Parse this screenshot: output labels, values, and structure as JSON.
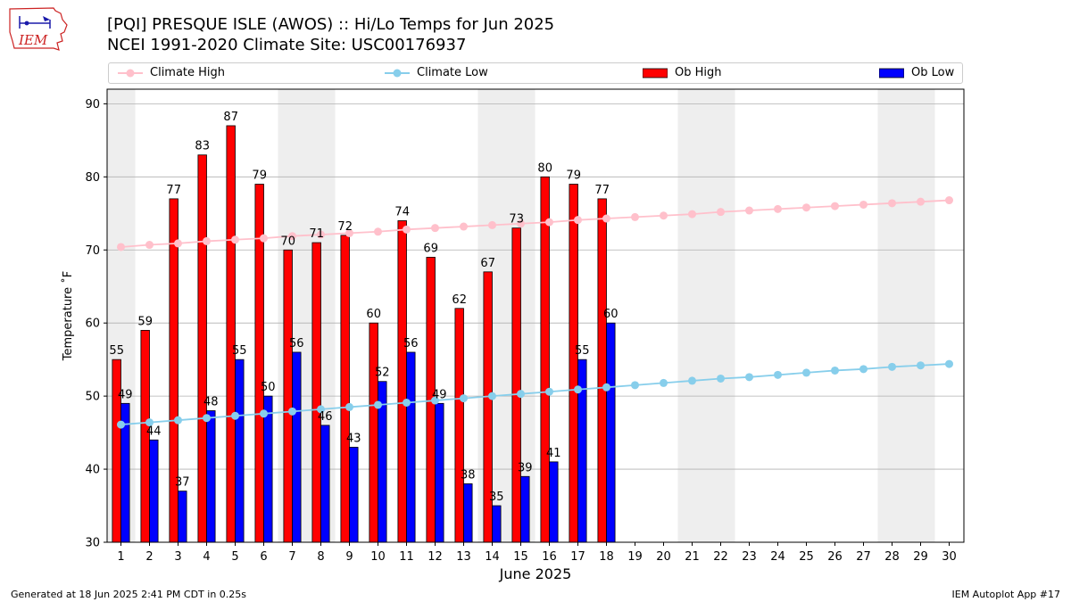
{
  "header": {
    "title_line1": "[PQI] PRESQUE ISLE (AWOS) :: Hi/Lo Temps for Jun 2025",
    "title_line2": "NCEI 1991-2020 Climate Site: USC00176937"
  },
  "logo": {
    "text": "IEM",
    "icon": "iowa-state-outline-logo"
  },
  "footer": {
    "left": "Generated at 18 Jun 2025 2:41 PM CDT in 0.25s",
    "right": "IEM Autoplot App #17"
  },
  "chart_data": {
    "type": "bar",
    "xlabel": "June 2025",
    "ylabel": "Temperature $^\\circ$F",
    "ylabel_display": "Temperature ˚F",
    "ylim": [
      30,
      92
    ],
    "yticks": [
      30,
      40,
      50,
      60,
      70,
      80,
      90
    ],
    "grid": "horizontal",
    "legend_position": "top",
    "days": [
      1,
      2,
      3,
      4,
      5,
      6,
      7,
      8,
      9,
      10,
      11,
      12,
      13,
      14,
      15,
      16,
      17,
      18,
      19,
      20,
      21,
      22,
      23,
      24,
      25,
      26,
      27,
      28,
      29,
      30
    ],
    "weekend_shaded_days": [
      1,
      7,
      8,
      14,
      15,
      21,
      22,
      28,
      29
    ],
    "colors": {
      "climate_high": "#ffc0cb",
      "climate_low": "#87ceeb",
      "ob_high": "#ff0000",
      "ob_low": "#0000ff",
      "weekend_band": "#eeeeee",
      "grid": "#b0b0b0"
    },
    "series": [
      {
        "name": "Climate High",
        "kind": "line",
        "values": [
          70.4,
          70.7,
          70.9,
          71.2,
          71.4,
          71.6,
          71.9,
          72.1,
          72.3,
          72.5,
          72.8,
          73.0,
          73.2,
          73.4,
          73.6,
          73.8,
          74.1,
          74.3,
          74.5,
          74.7,
          74.9,
          75.2,
          75.4,
          75.6,
          75.8,
          76.0,
          76.2,
          76.4,
          76.6,
          76.8
        ]
      },
      {
        "name": "Climate Low",
        "kind": "line",
        "values": [
          46.1,
          46.4,
          46.7,
          47.0,
          47.3,
          47.6,
          47.9,
          48.2,
          48.5,
          48.8,
          49.1,
          49.4,
          49.7,
          50.0,
          50.3,
          50.6,
          50.9,
          51.2,
          51.5,
          51.8,
          52.1,
          52.4,
          52.6,
          52.9,
          53.2,
          53.5,
          53.7,
          54.0,
          54.2,
          54.4
        ]
      },
      {
        "name": "Ob High",
        "kind": "bar",
        "values": [
          55,
          59,
          77,
          83,
          87,
          79,
          70,
          71,
          72,
          60,
          74,
          69,
          62,
          67,
          73,
          80,
          79,
          77
        ]
      },
      {
        "name": "Ob Low",
        "kind": "bar",
        "values": [
          49,
          44,
          37,
          48,
          55,
          50,
          56,
          46,
          43,
          52,
          56,
          49,
          38,
          35,
          39,
          41,
          55,
          60
        ]
      }
    ]
  }
}
